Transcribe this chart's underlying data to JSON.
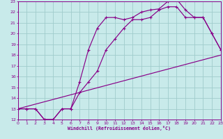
{
  "bg_color": "#c8eaea",
  "grid_color": "#a0cccc",
  "line_color": "#880088",
  "xlabel": "Windchill (Refroidissement éolien,°C)",
  "xlim": [
    0,
    23
  ],
  "ylim": [
    12,
    23
  ],
  "xticks": [
    0,
    1,
    2,
    3,
    4,
    5,
    6,
    7,
    8,
    9,
    10,
    11,
    12,
    13,
    14,
    15,
    16,
    17,
    18,
    19,
    20,
    21,
    22,
    23
  ],
  "yticks": [
    12,
    13,
    14,
    15,
    16,
    17,
    18,
    19,
    20,
    21,
    22,
    23
  ],
  "line1_x": [
    0,
    23
  ],
  "line1_y": [
    13,
    18
  ],
  "line2_x": [
    0,
    1,
    2,
    3,
    4,
    5,
    6,
    7,
    8,
    9,
    10,
    11,
    12,
    13,
    14,
    15,
    16,
    17,
    18,
    19,
    20,
    21,
    22,
    23
  ],
  "line2_y": [
    13,
    13,
    13,
    12,
    12,
    13,
    13,
    14.5,
    15.5,
    16.5,
    18.5,
    19.5,
    20.5,
    21.3,
    21.3,
    21.5,
    22.2,
    22.5,
    22.5,
    21.5,
    21.5,
    21.5,
    20,
    18.5
  ],
  "line3_x": [
    0,
    1,
    2,
    3,
    4,
    5,
    6,
    7,
    8,
    9,
    10,
    11,
    12,
    13,
    14,
    15,
    16,
    17,
    18,
    19,
    20,
    21,
    22,
    23
  ],
  "line3_y": [
    13,
    13,
    13,
    12,
    12,
    13,
    13,
    15.5,
    18.5,
    20.5,
    21.5,
    21.5,
    21.3,
    21.5,
    22,
    22.2,
    22.3,
    23.0,
    23.2,
    22.2,
    21.5,
    21.5,
    20,
    18.5
  ]
}
